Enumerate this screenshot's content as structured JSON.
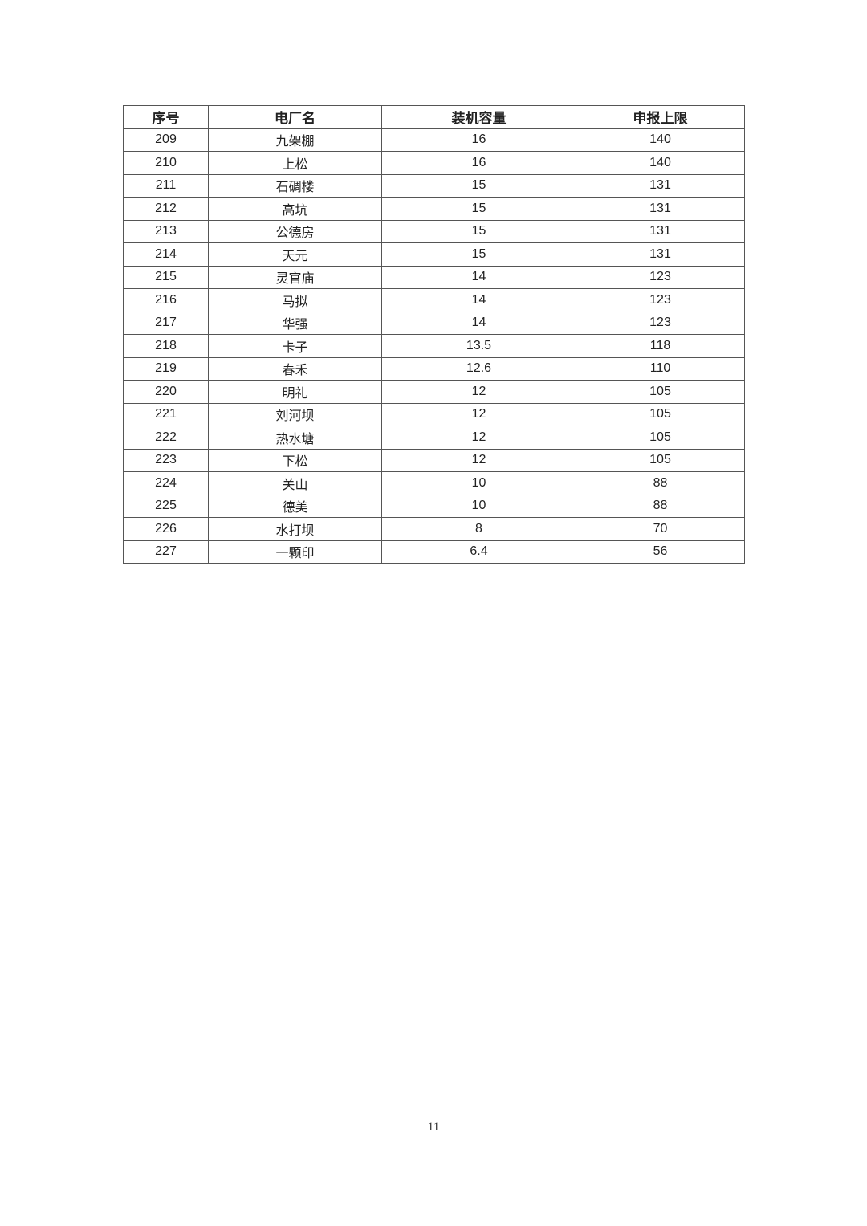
{
  "table": {
    "headers": [
      "序号",
      "电厂名",
      "装机容量",
      "申报上限"
    ],
    "rows": [
      [
        "209",
        "九架棚",
        "16",
        "140"
      ],
      [
        "210",
        "上松",
        "16",
        "140"
      ],
      [
        "211",
        "石碉楼",
        "15",
        "131"
      ],
      [
        "212",
        "高坑",
        "15",
        "131"
      ],
      [
        "213",
        "公德房",
        "15",
        "131"
      ],
      [
        "214",
        "天元",
        "15",
        "131"
      ],
      [
        "215",
        "灵官庙",
        "14",
        "123"
      ],
      [
        "216",
        "马拟",
        "14",
        "123"
      ],
      [
        "217",
        "华强",
        "14",
        "123"
      ],
      [
        "218",
        "卡子",
        "13.5",
        "118"
      ],
      [
        "219",
        "春禾",
        "12.6",
        "110"
      ],
      [
        "220",
        "明礼",
        "12",
        "105"
      ],
      [
        "221",
        "刘河坝",
        "12",
        "105"
      ],
      [
        "222",
        "热水塘",
        "12",
        "105"
      ],
      [
        "223",
        "下松",
        "12",
        "105"
      ],
      [
        "224",
        "关山",
        "10",
        "88"
      ],
      [
        "225",
        "德美",
        "10",
        "88"
      ],
      [
        "226",
        "水打坝",
        "8",
        "70"
      ],
      [
        "227",
        "一颗印",
        "6.4",
        "56"
      ]
    ]
  },
  "page_number": "11"
}
